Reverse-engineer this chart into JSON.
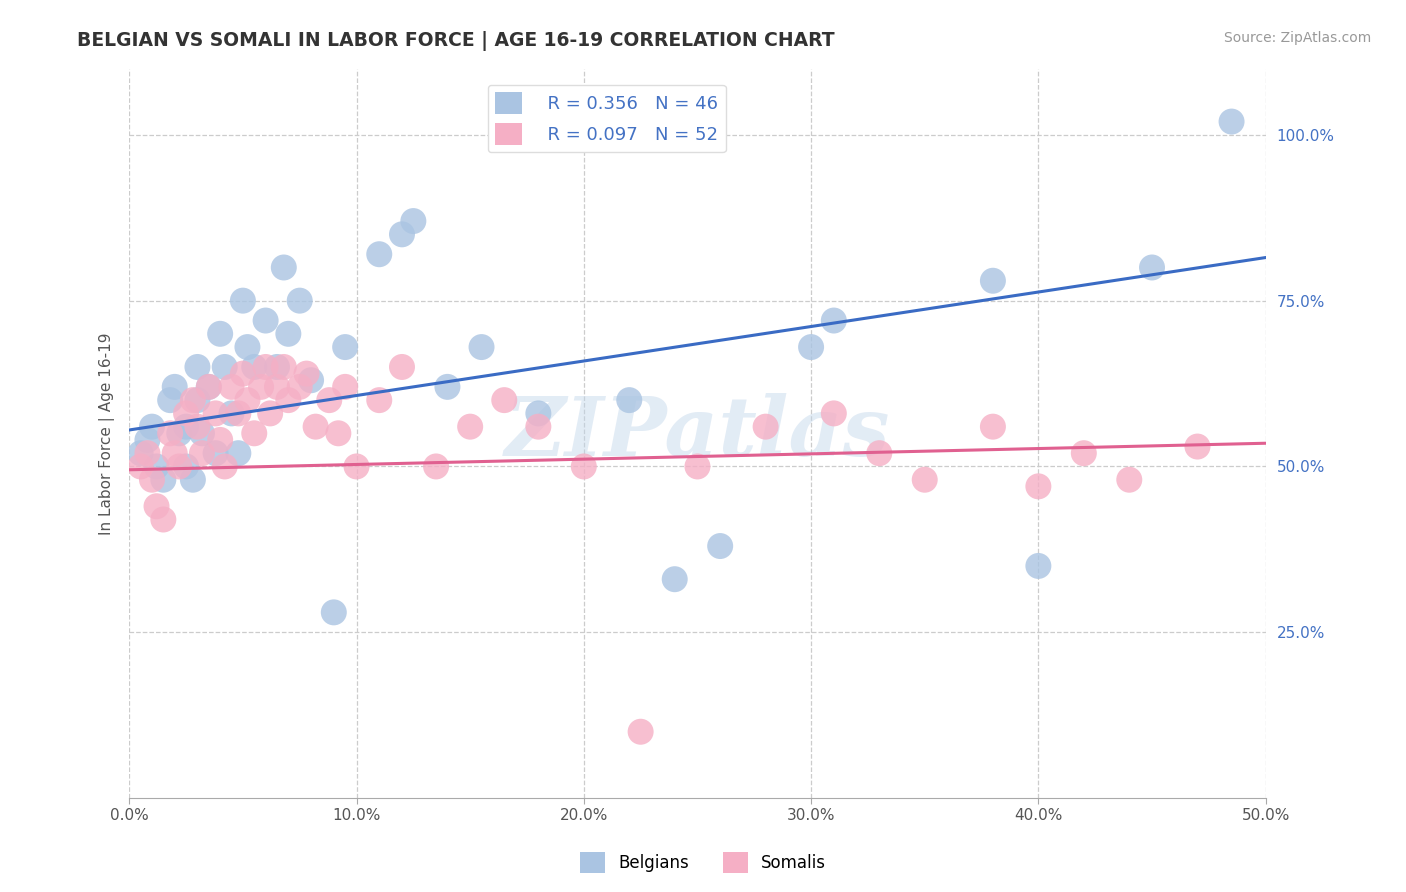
{
  "title": "BELGIAN VS SOMALI IN LABOR FORCE | AGE 16-19 CORRELATION CHART",
  "source": "Source: ZipAtlas.com",
  "ylabel": "In Labor Force | Age 16-19",
  "xmin": 0.0,
  "xmax": 0.5,
  "ymin": 0.0,
  "ymax": 1.1,
  "xtick_labels": [
    "0.0%",
    "10.0%",
    "20.0%",
    "30.0%",
    "40.0%",
    "50.0%"
  ],
  "xtick_vals": [
    0.0,
    0.1,
    0.2,
    0.3,
    0.4,
    0.5
  ],
  "ytick_labels": [
    "25.0%",
    "50.0%",
    "75.0%",
    "100.0%"
  ],
  "ytick_vals": [
    0.25,
    0.5,
    0.75,
    1.0
  ],
  "legend_r1": "R = 0.356",
  "legend_n1": "N = 46",
  "legend_r2": "R = 0.097",
  "legend_n2": "N = 52",
  "belgian_color": "#aac4e2",
  "somali_color": "#f5afc5",
  "line_belgian_color": "#3a6bc4",
  "line_somali_color": "#e06090",
  "tick_color": "#4472c4",
  "watermark": "ZIPatlas",
  "belgian_x": [
    0.005,
    0.008,
    0.01,
    0.012,
    0.015,
    0.018,
    0.02,
    0.022,
    0.025,
    0.025,
    0.028,
    0.03,
    0.03,
    0.032,
    0.035,
    0.038,
    0.04,
    0.042,
    0.045,
    0.048,
    0.05,
    0.052,
    0.055,
    0.06,
    0.065,
    0.068,
    0.07,
    0.075,
    0.08,
    0.09,
    0.095,
    0.11,
    0.12,
    0.125,
    0.14,
    0.155,
    0.18,
    0.22,
    0.24,
    0.26,
    0.3,
    0.31,
    0.38,
    0.4,
    0.45,
    0.485
  ],
  "belgian_y": [
    0.52,
    0.54,
    0.56,
    0.5,
    0.48,
    0.6,
    0.62,
    0.55,
    0.5,
    0.56,
    0.48,
    0.65,
    0.6,
    0.55,
    0.62,
    0.52,
    0.7,
    0.65,
    0.58,
    0.52,
    0.75,
    0.68,
    0.65,
    0.72,
    0.65,
    0.8,
    0.7,
    0.75,
    0.63,
    0.28,
    0.68,
    0.82,
    0.85,
    0.87,
    0.62,
    0.68,
    0.58,
    0.6,
    0.33,
    0.38,
    0.68,
    0.72,
    0.78,
    0.35,
    0.8,
    1.02
  ],
  "somali_x": [
    0.005,
    0.008,
    0.01,
    0.012,
    0.015,
    0.018,
    0.02,
    0.022,
    0.025,
    0.028,
    0.03,
    0.032,
    0.035,
    0.038,
    0.04,
    0.042,
    0.045,
    0.048,
    0.05,
    0.052,
    0.055,
    0.058,
    0.06,
    0.062,
    0.065,
    0.068,
    0.07,
    0.075,
    0.078,
    0.082,
    0.088,
    0.092,
    0.095,
    0.1,
    0.11,
    0.12,
    0.135,
    0.15,
    0.165,
    0.18,
    0.2,
    0.225,
    0.25,
    0.28,
    0.31,
    0.33,
    0.35,
    0.38,
    0.4,
    0.42,
    0.44,
    0.47
  ],
  "somali_y": [
    0.5,
    0.52,
    0.48,
    0.44,
    0.42,
    0.55,
    0.52,
    0.5,
    0.58,
    0.6,
    0.56,
    0.52,
    0.62,
    0.58,
    0.54,
    0.5,
    0.62,
    0.58,
    0.64,
    0.6,
    0.55,
    0.62,
    0.65,
    0.58,
    0.62,
    0.65,
    0.6,
    0.62,
    0.64,
    0.56,
    0.6,
    0.55,
    0.62,
    0.5,
    0.6,
    0.65,
    0.5,
    0.56,
    0.6,
    0.56,
    0.5,
    0.1,
    0.5,
    0.56,
    0.58,
    0.52,
    0.48,
    0.56,
    0.47,
    0.52,
    0.48,
    0.53
  ]
}
